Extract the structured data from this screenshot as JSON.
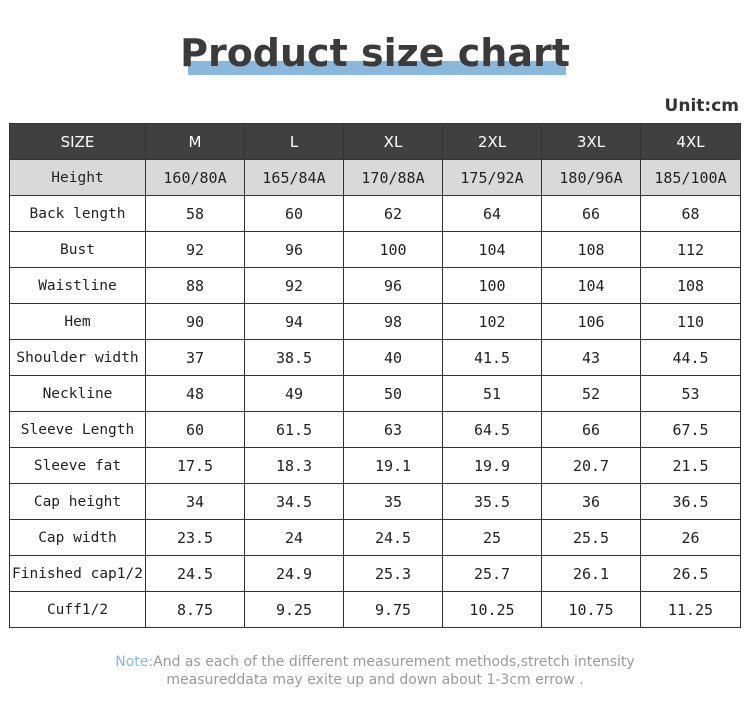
{
  "title": "Product size chart",
  "unit": "Unit:cm",
  "table": {
    "headers": [
      "SIZE",
      "M",
      "L",
      "XL",
      "2XL",
      "3XL",
      "4XL"
    ],
    "rows": [
      {
        "label": "Height",
        "values": [
          "160/80A",
          "165/84A",
          "170/88A",
          "175/92A",
          "180/96A",
          "185/100A"
        ]
      },
      {
        "label": "Back length",
        "values": [
          "58",
          "60",
          "62",
          "64",
          "66",
          "68"
        ]
      },
      {
        "label": "Bust",
        "values": [
          "92",
          "96",
          "100",
          "104",
          "108",
          "112"
        ]
      },
      {
        "label": "Waistline",
        "values": [
          "88",
          "92",
          "96",
          "100",
          "104",
          "108"
        ]
      },
      {
        "label": "Hem",
        "values": [
          "90",
          "94",
          "98",
          "102",
          "106",
          "110"
        ]
      },
      {
        "label": "Shoulder width",
        "values": [
          "37",
          "38.5",
          "40",
          "41.5",
          "43",
          "44.5"
        ]
      },
      {
        "label": "Neckline",
        "values": [
          "48",
          "49",
          "50",
          "51",
          "52",
          "53"
        ]
      },
      {
        "label": "Sleeve Length",
        "values": [
          "60",
          "61.5",
          "63",
          "64.5",
          "66",
          "67.5"
        ]
      },
      {
        "label": "Sleeve fat",
        "values": [
          "17.5",
          "18.3",
          "19.1",
          "19.9",
          "20.7",
          "21.5"
        ]
      },
      {
        "label": "Cap height",
        "values": [
          "34",
          "34.5",
          "35",
          "35.5",
          "36",
          "36.5"
        ]
      },
      {
        "label": "Cap width",
        "values": [
          "23.5",
          "24",
          "24.5",
          "25",
          "25.5",
          "26"
        ]
      },
      {
        "label": "Finished cap1/2",
        "values": [
          "24.5",
          "24.9",
          "25.3",
          "25.7",
          "26.1",
          "26.5"
        ]
      },
      {
        "label": "Cuff1/2",
        "values": [
          "8.75",
          "9.25",
          "9.75",
          "10.25",
          "10.75",
          "11.25"
        ]
      }
    ]
  },
  "note": {
    "label": "Note:",
    "line1": "And as each of the different measurement methods,stretch intensity",
    "line2": "measureddata may exite up and down about 1-3cm errow ."
  },
  "colors": {
    "header_bg": "#404040",
    "shaded_row_bg": "#d9d9d9",
    "title_accent": "#8ab7dc"
  }
}
